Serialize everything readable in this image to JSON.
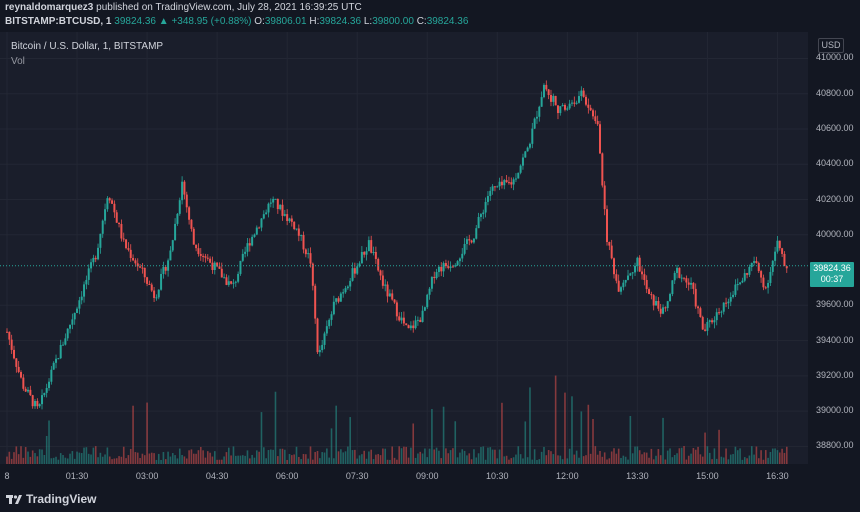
{
  "header": {
    "publisher": "reynaldomarquez3",
    "published_text": "published on TradingView.com, July 28, 2021 16:39:25 UTC",
    "symbol": "BITSTAMP:BTCUSD, 1",
    "last": "39824.36",
    "change": "▲ +348.95 (+0.88%)",
    "o_label": "O:",
    "o_value": "39806.01",
    "h_label": "H:",
    "h_value": "39824.36",
    "l_label": "L:",
    "l_value": "39800.00",
    "c_label": "C:",
    "c_value": "39824.36"
  },
  "legend": {
    "title": "Bitcoin / U.S. Dollar, 1, BITSTAMP",
    "volume": "Vol"
  },
  "currency_button": "USD",
  "price_badge": {
    "price": "39824.36",
    "countdown": "00:37"
  },
  "brand": {
    "name": "TradingView",
    "logo_icon": "tradingview-logo-icon"
  },
  "colors": {
    "up": "#26a69a",
    "down": "#ef5350",
    "background": "#1a1e2b"
  },
  "chart_data": {
    "type": "candlestick",
    "y_ticks": [
      "41000.00",
      "40800.00",
      "40600.00",
      "40400.00",
      "40200.00",
      "40000.00",
      "39600.00",
      "39400.00",
      "39200.00",
      "39000.00",
      "38800.00"
    ],
    "x_ticks": [
      "8",
      "01:30",
      "03:00",
      "04:30",
      "06:00",
      "07:30",
      "09:00",
      "10:30",
      "12:00",
      "13:30",
      "15:00",
      "16:30"
    ],
    "ylim": [
      38700,
      41150
    ],
    "last_price": 39824.36,
    "close_path": [
      {
        "t": "00:00",
        "p": 39450
      },
      {
        "t": "00:20",
        "p": 39150
      },
      {
        "t": "00:40",
        "p": 39000
      },
      {
        "t": "01:00",
        "p": 39250
      },
      {
        "t": "01:30",
        "p": 39600
      },
      {
        "t": "01:55",
        "p": 39900
      },
      {
        "t": "02:10",
        "p": 40250
      },
      {
        "t": "02:30",
        "p": 39950
      },
      {
        "t": "02:55",
        "p": 39780
      },
      {
        "t": "03:10",
        "p": 39650
      },
      {
        "t": "03:30",
        "p": 39900
      },
      {
        "t": "03:45",
        "p": 40300
      },
      {
        "t": "04:00",
        "p": 39950
      },
      {
        "t": "04:20",
        "p": 39850
      },
      {
        "t": "04:50",
        "p": 39700
      },
      {
        "t": "05:10",
        "p": 39950
      },
      {
        "t": "05:40",
        "p": 40200
      },
      {
        "t": "06:10",
        "p": 40050
      },
      {
        "t": "06:30",
        "p": 39850
      },
      {
        "t": "06:40",
        "p": 39300
      },
      {
        "t": "07:00",
        "p": 39600
      },
      {
        "t": "07:20",
        "p": 39750
      },
      {
        "t": "07:45",
        "p": 39950
      },
      {
        "t": "08:05",
        "p": 39700
      },
      {
        "t": "08:35",
        "p": 39450
      },
      {
        "t": "08:55",
        "p": 39550
      },
      {
        "t": "09:10",
        "p": 39800
      },
      {
        "t": "09:35",
        "p": 39850
      },
      {
        "t": "10:00",
        "p": 40000
      },
      {
        "t": "10:20",
        "p": 40250
      },
      {
        "t": "10:50",
        "p": 40300
      },
      {
        "t": "11:10",
        "p": 40500
      },
      {
        "t": "11:30",
        "p": 40850
      },
      {
        "t": "11:50",
        "p": 40700
      },
      {
        "t": "12:20",
        "p": 40800
      },
      {
        "t": "12:40",
        "p": 40600
      },
      {
        "t": "12:50",
        "p": 40000
      },
      {
        "t": "13:05",
        "p": 39700
      },
      {
        "t": "13:30",
        "p": 39850
      },
      {
        "t": "13:45",
        "p": 39650
      },
      {
        "t": "14:05",
        "p": 39550
      },
      {
        "t": "14:20",
        "p": 39800
      },
      {
        "t": "14:40",
        "p": 39700
      },
      {
        "t": "14:55",
        "p": 39450
      },
      {
        "t": "15:20",
        "p": 39600
      },
      {
        "t": "15:45",
        "p": 39750
      },
      {
        "t": "16:00",
        "p": 39850
      },
      {
        "t": "16:15",
        "p": 39700
      },
      {
        "t": "16:30",
        "p": 39950
      },
      {
        "t": "16:39",
        "p": 39824
      }
    ]
  }
}
